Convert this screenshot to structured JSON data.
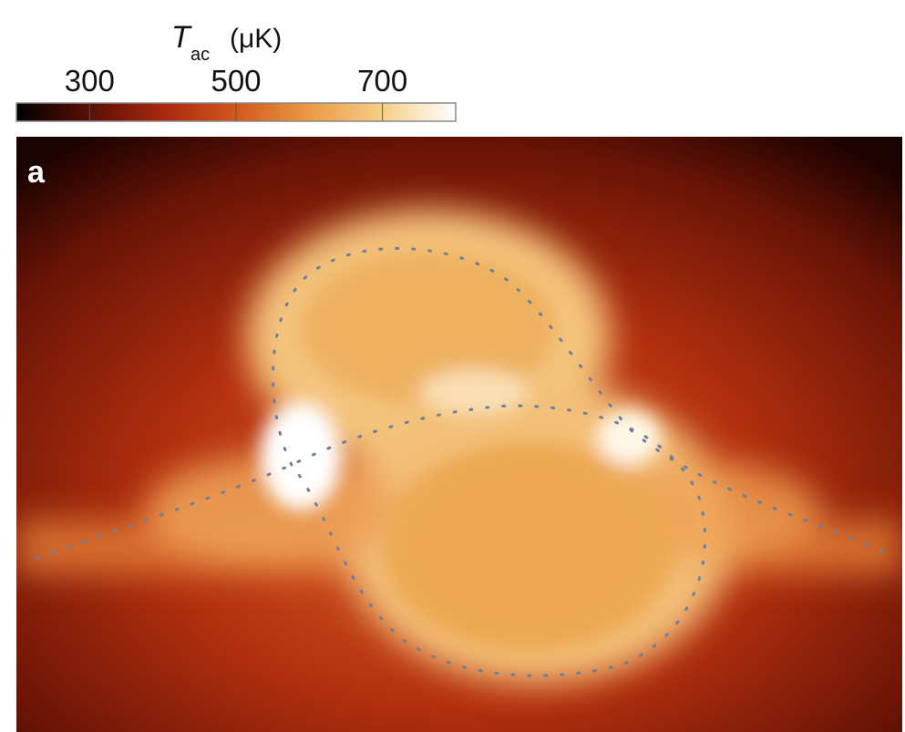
{
  "chart_data": {
    "type": "heatmap",
    "panel_label": "a",
    "colorbar_symbol": "T",
    "colorbar_subscript": "ac",
    "colorbar_unit": "(μK)",
    "clim": [
      200,
      800
    ],
    "cticks": [
      300,
      500,
      700
    ],
    "colormap": [
      "#000000",
      "#5a0f05",
      "#a8280e",
      "#d2581d",
      "#eb9a45",
      "#f6cf88",
      "#ffffff"
    ]
  }
}
